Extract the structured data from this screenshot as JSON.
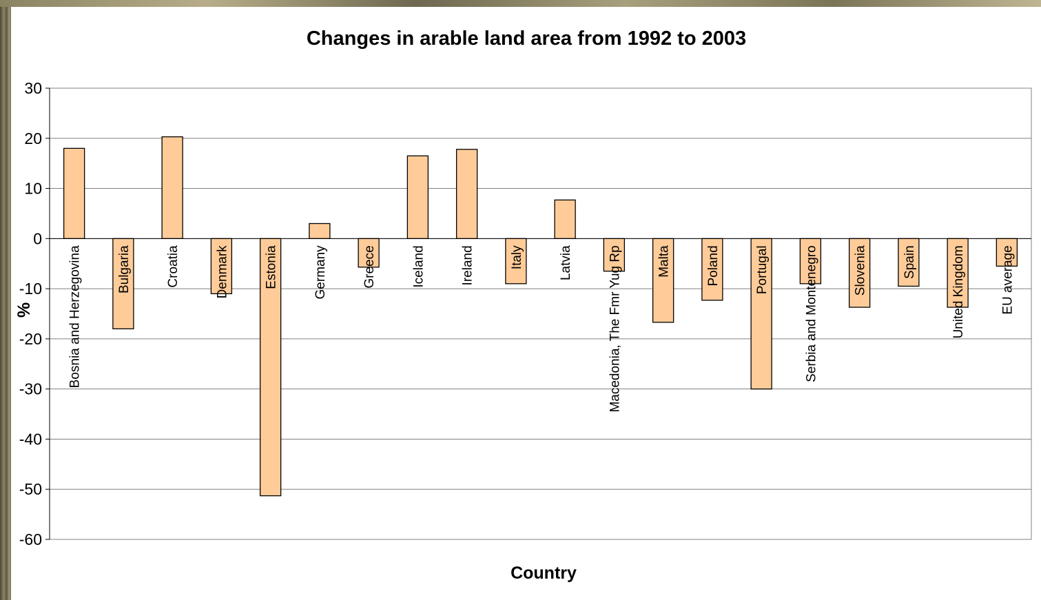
{
  "chart_data": {
    "type": "bar",
    "title": "Changes in arable land area from 1992 to 2003",
    "xlabel": "Country",
    "ylabel": "%",
    "ylim": [
      -60,
      30
    ],
    "yticks": [
      30,
      20,
      10,
      0,
      -10,
      -20,
      -30,
      -40,
      -50,
      -60
    ],
    "grid": true,
    "categories": [
      "Bosnia and Herzegovina",
      "Bulgaria",
      "Croatia",
      "Denmark",
      "Estonia",
      "Germany",
      "Greece",
      "Iceland",
      "Ireland",
      "Italy",
      "Latvia",
      "Macedonia, The Fmr Yug Rp",
      "Malta",
      "Poland",
      "Portugal",
      "Serbia and Montenegro",
      "Slovenia",
      "Spain",
      "United Kingdom",
      "EU average"
    ],
    "values": [
      18,
      -18,
      20.3,
      -11,
      -51.3,
      3,
      -5.7,
      16.5,
      17.8,
      -9,
      7.7,
      -6.5,
      -16.7,
      -12.3,
      -30,
      -9,
      -13.7,
      -9.5,
      -13.7,
      -5.5
    ],
    "bar_color": "#ffcc99",
    "bar_edge_color": "#000000",
    "gridline_color": "#808080"
  }
}
